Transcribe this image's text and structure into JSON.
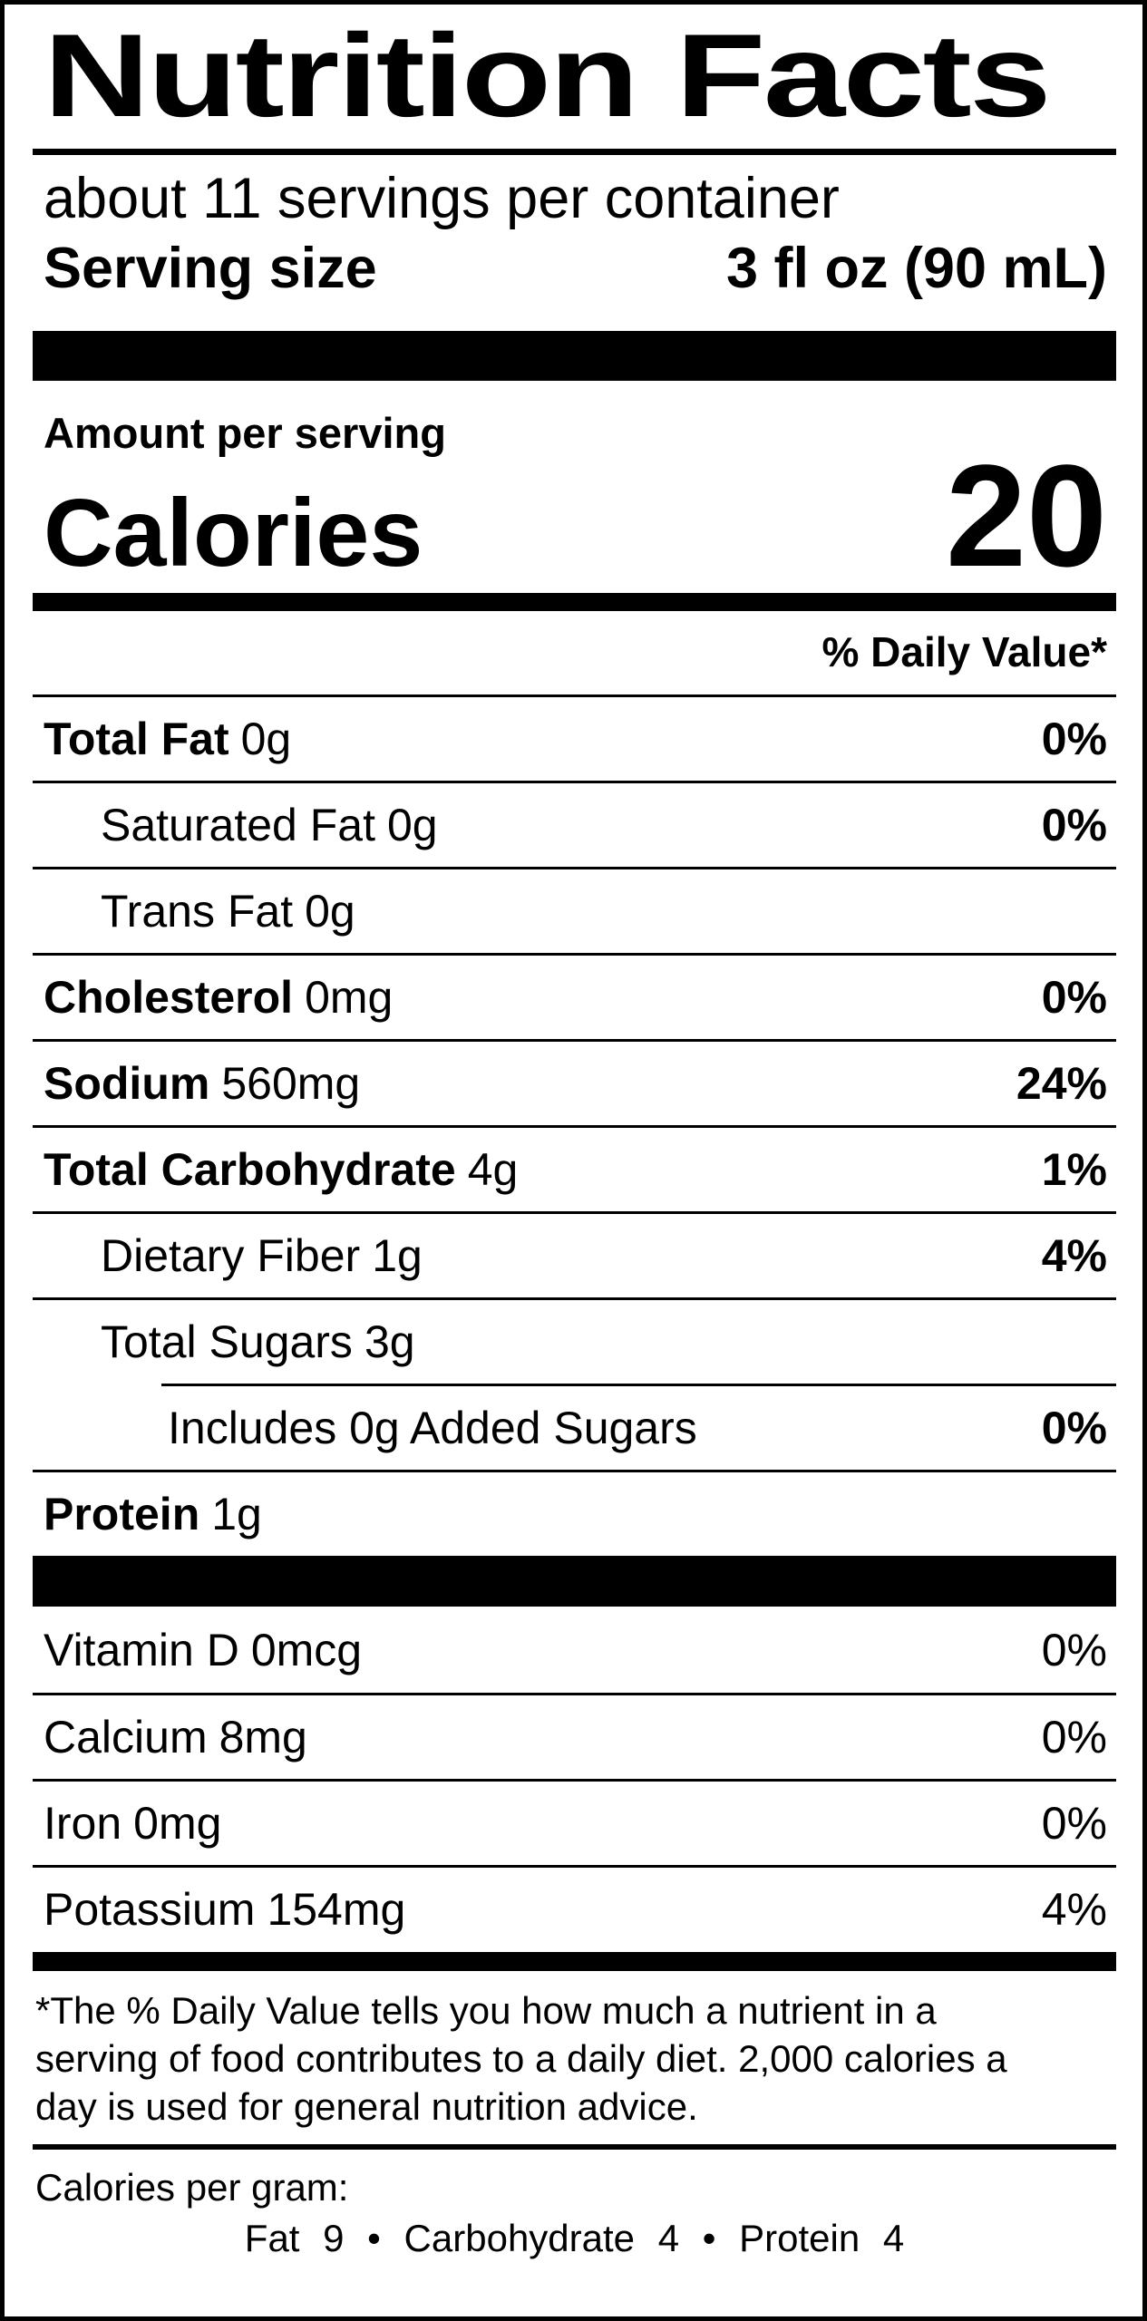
{
  "label": {
    "title": "Nutrition Facts",
    "servings_per_container": "about 11 servings per container",
    "serving_size": {
      "label": "Serving size",
      "value": "3 fl oz (90 mL)"
    },
    "amount_per_serving": "Amount per serving",
    "calories": {
      "label": "Calories",
      "value": "20"
    },
    "daily_value_header": "% Daily Value*",
    "nutrients": [
      {
        "name": "Total Fat",
        "amount": "0g",
        "dv": "0%"
      },
      {
        "name": "Saturated Fat",
        "amount": "0g",
        "dv": "0%"
      },
      {
        "name": "Trans Fat",
        "amount": "0g",
        "dv": ""
      },
      {
        "name": "Cholesterol",
        "amount": "0mg",
        "dv": "0%"
      },
      {
        "name": "Sodium",
        "amount": "560mg",
        "dv": "24%"
      },
      {
        "name": "Total Carbohydrate",
        "amount": "4g",
        "dv": "1%"
      },
      {
        "name": "Dietary Fiber",
        "amount": "1g",
        "dv": "4%"
      },
      {
        "name": "Total Sugars",
        "amount": "3g",
        "dv": ""
      },
      {
        "name": "",
        "amount": "Includes 0g Added Sugars",
        "dv": "0%"
      },
      {
        "name": "Protein",
        "amount": "1g",
        "dv": ""
      }
    ],
    "vitamins": [
      {
        "name": "Vitamin D",
        "amount": "0mcg",
        "dv": "0%"
      },
      {
        "name": "Calcium",
        "amount": "8mg",
        "dv": "0%"
      },
      {
        "name": "Iron",
        "amount": "0mg",
        "dv": "0%"
      },
      {
        "name": "Potassium",
        "amount": "154mg",
        "dv": "4%"
      }
    ],
    "footnote_lines": [
      "*The % Daily Value tells you how much a nutrient in a",
      "serving of food contributes to a daily diet. 2,000 calories a",
      "day is used for general nutrition advice."
    ],
    "calories_per_gram": {
      "label": "Calories per gram:",
      "values": "Fat 9 • Carbohydrate 4 • Protein 4"
    },
    "colors": {
      "ink": "#000000",
      "paper": "#ffffff"
    }
  }
}
